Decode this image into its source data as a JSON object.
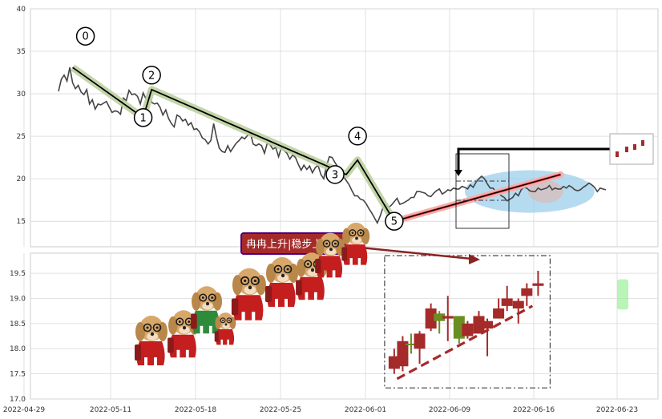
{
  "chart_data": [
    {
      "type": "line",
      "panel": "price",
      "ylim": [
        12,
        40
      ],
      "yticks": [
        15,
        20,
        25,
        30,
        35,
        40
      ],
      "grid": true,
      "series": [
        {
          "values": [
            30.3,
            31.7,
            32.2,
            31.5,
            33.1,
            31.3,
            30.6,
            31.0,
            30.2,
            29.9,
            30.5,
            28.8,
            29.3,
            28.2,
            28.8,
            28.7,
            28.9,
            29.1,
            28.4,
            27.8,
            28.0,
            27.9,
            27.6,
            29.5,
            29.2,
            30.4,
            29.9,
            30.0,
            29.7,
            28.8,
            30.1,
            29.4,
            30.2,
            29.0,
            28.8,
            28.9,
            28.4,
            27.5,
            28.1,
            27.1,
            26.5,
            26.1,
            27.5,
            27.3,
            26.8,
            27.0,
            26.3,
            26.6,
            25.8,
            25.9,
            25.5,
            24.8,
            24.6,
            24.1,
            24.5,
            26.5,
            24.9,
            23.6,
            23.2,
            23.1,
            23.9,
            23.2,
            23.7,
            24.2,
            24.5,
            24.9,
            24.7,
            25.1,
            25.4,
            24.1,
            23.9,
            24.1,
            23.9,
            23.0,
            24.2,
            24.0,
            23.5,
            23.7,
            22.6,
            23.7,
            23.3,
            23.0,
            22.3,
            22.8,
            22.5,
            21.7,
            21.0,
            21.6,
            21.1,
            21.5,
            20.7,
            21.3,
            21.6,
            20.5,
            20.0,
            21.5,
            22.6,
            22.5,
            21.9,
            21.4,
            20.5,
            20.3,
            19.8,
            19.3,
            18.6,
            18.0,
            18.0,
            17.6,
            17.5,
            17.1,
            16.5,
            16.0,
            15.4,
            14.8,
            15.6,
            16.6,
            16.9,
            16.6,
            16.9,
            17.3,
            17.7,
            17.0,
            17.1,
            17.3,
            17.5,
            17.8,
            17.8,
            18.5,
            18.5,
            18.4,
            18.3,
            18.0,
            17.9,
            18.3,
            18.6,
            18.8,
            18.2,
            18.4,
            18.7,
            18.6,
            18.9,
            18.8,
            18.8,
            19.1,
            19.0,
            18.8,
            19.3,
            19.0,
            19.6,
            20.0,
            20.3,
            20.0,
            19.4,
            18.9,
            18.9,
            18.5,
            18.3,
            18.0,
            17.8,
            17.4,
            17.6,
            17.8,
            18.3,
            18.0,
            18.7,
            19.0,
            18.9,
            18.6,
            18.5,
            18.5,
            18.9,
            18.7,
            18.8,
            18.9,
            19.2,
            18.7,
            18.9,
            18.8,
            18.8,
            19.1,
            18.9,
            19.2,
            19.0,
            18.7,
            18.6,
            18.7,
            19.0,
            19.2,
            19.5,
            19.3,
            19.0,
            18.5,
            18.9,
            18.8,
            18.7
          ]
        }
      ],
      "waves": [
        {
          "label": "0",
          "i": 5,
          "y": 33.1
        },
        {
          "label": "1",
          "i": 30,
          "y": 27.2
        },
        {
          "label": "2",
          "i": 33,
          "y": 30.5
        },
        {
          "label": "3",
          "i": 102,
          "y": 20.5
        },
        {
          "label": "4",
          "i": 106,
          "y": 22.2
        },
        {
          "label": "5",
          "i": 119,
          "y": 15.0
        }
      ],
      "trend_line": {
        "from": {
          "i": 119,
          "y": 15.0
        },
        "to": {
          "i": 178,
          "y": 20.5
        }
      },
      "highlight_ellipse": {
        "center": {
          "i": 167,
          "y": 18.5
        },
        "radius_days": 23,
        "radius_price": 2.5
      }
    },
    {
      "type": "candlestick",
      "panel": "recent",
      "ylim": [
        17.0,
        19.9
      ],
      "yticks": [
        17.0,
        17.5,
        18.0,
        18.5,
        19.0,
        19.5
      ],
      "grid": true,
      "candles": [
        {
          "i": 119,
          "open": 17.6,
          "close": 17.85,
          "high": 18.0,
          "low": 17.5,
          "color": "red"
        },
        {
          "i": 122,
          "open": 17.65,
          "close": 18.15,
          "high": 18.25,
          "low": 17.55,
          "color": "red"
        },
        {
          "i": 125,
          "open": 18.1,
          "close": 18.1,
          "high": 18.3,
          "low": 17.9,
          "color": "green"
        },
        {
          "i": 128,
          "open": 18.0,
          "close": 18.3,
          "high": 18.35,
          "low": 17.7,
          "color": "red"
        },
        {
          "i": 132,
          "open": 18.4,
          "close": 18.8,
          "high": 18.9,
          "low": 18.35,
          "color": "red"
        },
        {
          "i": 135,
          "open": 18.7,
          "close": 18.55,
          "high": 18.75,
          "low": 18.3,
          "color": "green"
        },
        {
          "i": 138,
          "open": 18.6,
          "close": 18.65,
          "high": 19.05,
          "low": 18.15,
          "color": "red"
        },
        {
          "i": 142,
          "open": 18.65,
          "close": 18.2,
          "high": 18.65,
          "low": 18.1,
          "color": "green"
        },
        {
          "i": 145,
          "open": 18.25,
          "close": 18.5,
          "high": 18.55,
          "low": 18.2,
          "color": "red"
        },
        {
          "i": 149,
          "open": 18.3,
          "close": 18.65,
          "high": 18.75,
          "low": 18.3,
          "color": "red"
        },
        {
          "i": 152,
          "open": 18.4,
          "close": 18.55,
          "high": 18.6,
          "low": 17.85,
          "color": "red"
        },
        {
          "i": 156,
          "open": 18.6,
          "close": 18.8,
          "high": 19.0,
          "low": 18.6,
          "color": "red"
        },
        {
          "i": 159,
          "open": 18.85,
          "close": 19.0,
          "high": 19.25,
          "low": 18.75,
          "color": "red"
        },
        {
          "i": 163,
          "open": 18.8,
          "close": 18.95,
          "high": 19.0,
          "low": 18.5,
          "color": "red"
        },
        {
          "i": 166,
          "open": 19.05,
          "close": 19.2,
          "high": 19.3,
          "low": 18.85,
          "color": "red"
        },
        {
          "i": 170,
          "open": 19.25,
          "close": 19.3,
          "high": 19.55,
          "low": 19.05,
          "color": "red"
        }
      ],
      "support_line": {
        "from": {
          "i": 120,
          "y": 17.4
        },
        "to": {
          "i": 168,
          "y": 18.85
        }
      },
      "xtick_labels": [
        "2022-04-29",
        "2022-05-11",
        "2022-05-18",
        "2022-05-25",
        "2022-06-01",
        "2022-06-09",
        "2022-06-16",
        "2022-06-23"
      ],
      "xtick_positions": [
        -5,
        18,
        38,
        58,
        78,
        98,
        118,
        138
      ]
    }
  ],
  "annotation": {
    "text": "冉冉上升|稳步上升"
  },
  "colors": {
    "line": "#444444",
    "wave": "#000000",
    "wave_glow": "#bcd0a0",
    "trend": "#ff4d4d",
    "trend_glow": "#f2b0b0",
    "ellipse": "#9ccfec",
    "candle_red": "#a52a2a",
    "candle_green": "#6b8e23",
    "support": "#a52a2a",
    "tag_bg": "#a52a2a",
    "tag_border": "#4b0082",
    "arrow": "#8b2323",
    "grid": "#d8d8d8"
  },
  "icons": {
    "mascot": "puppy-with-glasses-icon"
  }
}
